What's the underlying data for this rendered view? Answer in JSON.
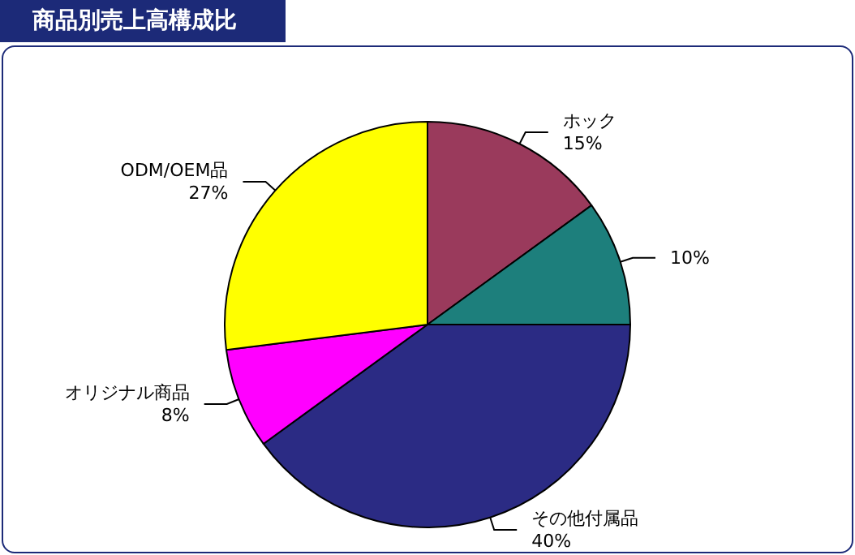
{
  "chart_data": {
    "type": "pie",
    "title": "商品別売上高構成比",
    "categories": [
      "ホック",
      null,
      "その他付属品",
      "オリジナル商品",
      "ODM/OEM品"
    ],
    "values": [
      15,
      10,
      40,
      8,
      27
    ],
    "value_labels": [
      "15%",
      "10%",
      "40%",
      "8%",
      "27%"
    ],
    "colors": [
      "#9a3a5c",
      "#1d7f7c",
      "#2b2b84",
      "#ff00ff",
      "#ffff00"
    ],
    "legend": false
  }
}
